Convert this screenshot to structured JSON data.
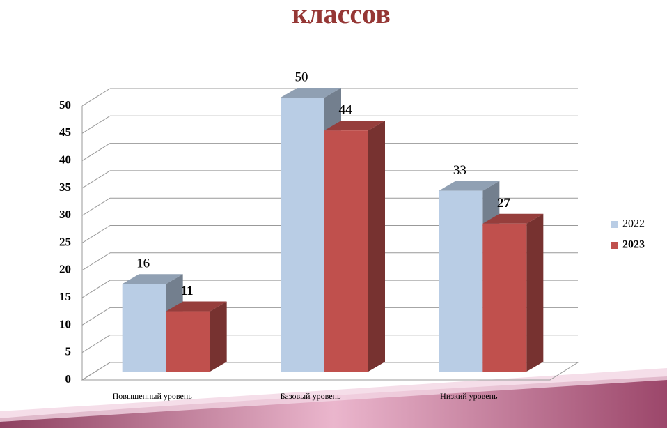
{
  "chart_data": {
    "type": "bar3d",
    "title": "классов",
    "categories": [
      "Повышенный уровень",
      "Базовый уровень",
      "Низкий уровень"
    ],
    "series": [
      {
        "name": "2022",
        "color": "#b9cde5",
        "values": [
          16,
          50,
          33
        ]
      },
      {
        "name": "2023",
        "color": "#c0504d",
        "values": [
          11,
          44,
          27
        ]
      }
    ],
    "ylim": [
      0,
      50
    ],
    "yticks": [
      0,
      5,
      10,
      15,
      20,
      25,
      30,
      35,
      40,
      45,
      50
    ],
    "grid": true,
    "legend": "right"
  }
}
